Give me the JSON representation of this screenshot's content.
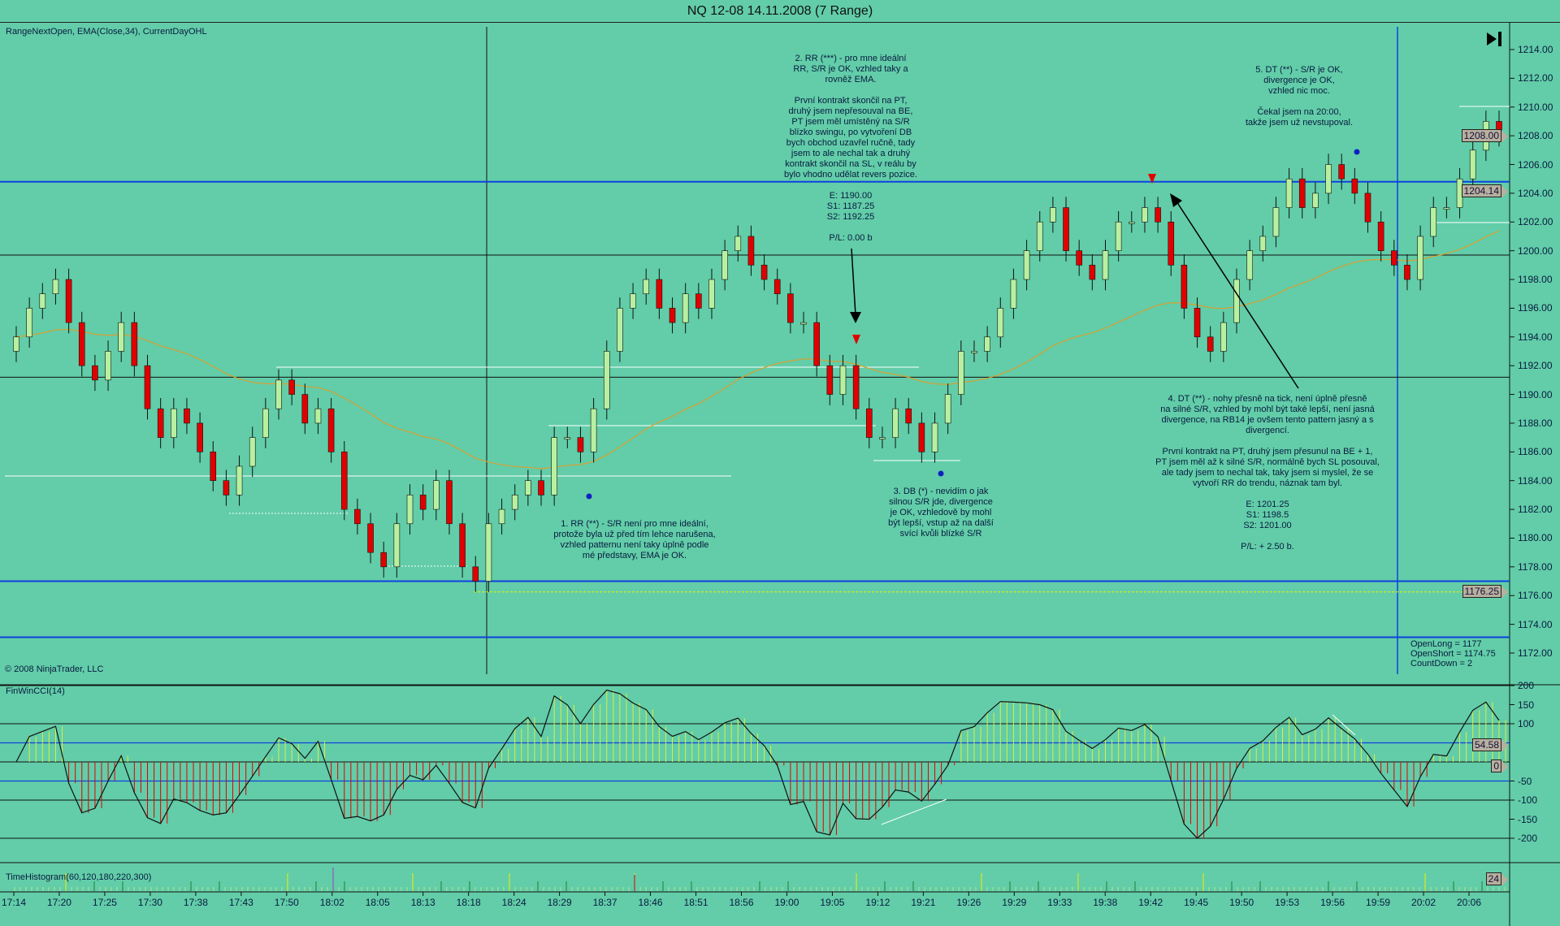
{
  "window": {
    "title": "NQ 12-08  14.11.2008 (7 Range)"
  },
  "price_panel": {
    "indicators_label": "RangeNextOpen, EMA(Close,34), CurrentDayOHL",
    "copyright": "© 2008 NinjaTrader, LLC",
    "open_info": [
      "OpenLong = 1177",
      "OpenShort = 1174.75",
      "CountDown = 2"
    ],
    "last_price_tag": "1208.00",
    "ema_tag": "1204.14",
    "low_tag": "1176.25"
  },
  "cci_panel": {
    "label": "FinWinCCI(14)",
    "value_tag": "54.58",
    "zero_tag": "0",
    "ticks": [
      "200",
      "150",
      "100",
      "-50",
      "-100",
      "-150",
      "-200"
    ]
  },
  "hist_panel": {
    "label": "TimeHistogram(60,120,180,220,300)",
    "value_tag": "24"
  },
  "annotations": {
    "note1": "1. RR (**) - S/R není pro mne ideální,\nprotože byla už před tím lehce narušena,\nvzhled patternu není taky úplně podle\nmé představy, EMA je OK.",
    "note2": "2. RR (***) - pro mne ideální\nRR, S/R je OK, vzhled taky a\nrovněž EMA.\n\nPrvní kontrakt skončil na PT,\ndruhý jsem nepřesouval na BE,\nPT jsem měl umístěný na S/R\nblízko swingu, po vytvoření DB\nbych obchod uzavřel ručně, tady\njsem to ale nechal tak a druhý\nkontrakt skončil na SL, v reálu by\nbylo vhodno udělat revers pozice.\n\nE: 1190.00\nS1: 1187.25\nS2: 1192.25\n\nP/L: 0.00 b",
    "note3": "3. DB (*) - nevidím o jak\nsilnou S/R jde, divergence\nje OK, vzhledově by mohl\nbýt lepší, vstup až na další\nsvící kvůli blízké S/R",
    "note4": "4. DT (**) - nohy přesně na tick, není úplně přesně\nna silné S/R, vzhled by mohl být také lepší, není jasná\ndivergence, na RB14 je ovšem tento pattern jasný a s\ndivergencí.\n\nPrvní kontrakt na PT, druhý jsem přesunul na BE + 1,\nPT jsem měl  až k silné S/R, normálně bych SL posouval,\nale tady jsem to nechal tak, taky jsem si myslel, že se\nvytvoří RR do trendu, náznak tam byl.\n\nE: 1201.25\nS1: 1198.5\nS2: 1201.00\n\nP/L: + 2.50 b.",
    "note5": "5. DT (**) - S/R je OK,\ndivergence je OK,\nvzhled nic moc.\n\nČekal jsem na 20:00,\ntakže jsem už nevstupoval."
  },
  "colors": {
    "background": "#62cda8",
    "up": "#b8f0a0",
    "down": "#e00000",
    "ema": "#d8a030",
    "blue_line": "#1040e0",
    "sr_line": "#ffffff"
  },
  "chart_data": {
    "type": "candlestick",
    "title": "NQ 12-08  14.11.2008 (7 Range)",
    "ylim": [
      1171,
      1215
    ],
    "y_ticks": [
      1172,
      1174,
      1176,
      1178,
      1180,
      1182,
      1184,
      1186,
      1188,
      1190,
      1192,
      1194,
      1196,
      1198,
      1200,
      1202,
      1204,
      1206,
      1208,
      1210,
      1212,
      1214
    ],
    "x_tick_labels": [
      "17:14",
      "17:20",
      "17:25",
      "17:30",
      "17:38",
      "17:43",
      "17:50",
      "18:02",
      "18:05",
      "18:13",
      "18:18",
      "18:24",
      "18:29",
      "18:37",
      "18:46",
      "18:51",
      "18:56",
      "19:00",
      "19:05",
      "19:12",
      "19:21",
      "19:26",
      "19:29",
      "19:33",
      "19:38",
      "19:42",
      "19:45",
      "19:50",
      "19:53",
      "19:56",
      "19:59",
      "20:02",
      "20:06"
    ],
    "closes": [
      1194,
      1196,
      1197,
      1198,
      1195,
      1192,
      1191,
      1193,
      1195,
      1192,
      1189,
      1187,
      1189,
      1188,
      1186,
      1184,
      1183,
      1185,
      1187,
      1189,
      1191,
      1190,
      1188,
      1189,
      1186,
      1182,
      1181,
      1179,
      1178,
      1181,
      1183,
      1182,
      1184,
      1181,
      1178,
      1177,
      1181,
      1182,
      1183,
      1184,
      1183,
      1187,
      1187,
      1186,
      1189,
      1193,
      1196,
      1197,
      1198,
      1196,
      1195,
      1197,
      1196,
      1198,
      1200,
      1201,
      1199,
      1198,
      1197,
      1195,
      1195,
      1192,
      1190,
      1192,
      1189,
      1187,
      1187,
      1189,
      1188,
      1186,
      1188,
      1190,
      1193,
      1193,
      1194,
      1196,
      1198,
      1200,
      1202,
      1203,
      1200,
      1199,
      1198,
      1200,
      1202,
      1202,
      1203,
      1202,
      1199,
      1196,
      1194,
      1193,
      1195,
      1198,
      1200,
      1201,
      1203,
      1205,
      1203,
      1204,
      1206,
      1205,
      1204,
      1202,
      1200,
      1199,
      1198,
      1201,
      1203,
      1203,
      1205,
      1207,
      1209,
      1208
    ],
    "ema_period": 34,
    "horizontal_levels": {
      "blue": [
        1204.8,
        1177.0,
        1173.1
      ],
      "black": [
        1199.7,
        1191.2
      ],
      "yellow_dotted": [
        1176.25
      ]
    },
    "cci": {
      "period": 14,
      "ylim": [
        -230,
        230
      ],
      "levels": [
        200,
        100,
        0,
        -100,
        -200
      ],
      "blue_levels": [
        50,
        -50
      ],
      "last": 54.58
    },
    "time_histogram": {
      "last": 24
    }
  }
}
